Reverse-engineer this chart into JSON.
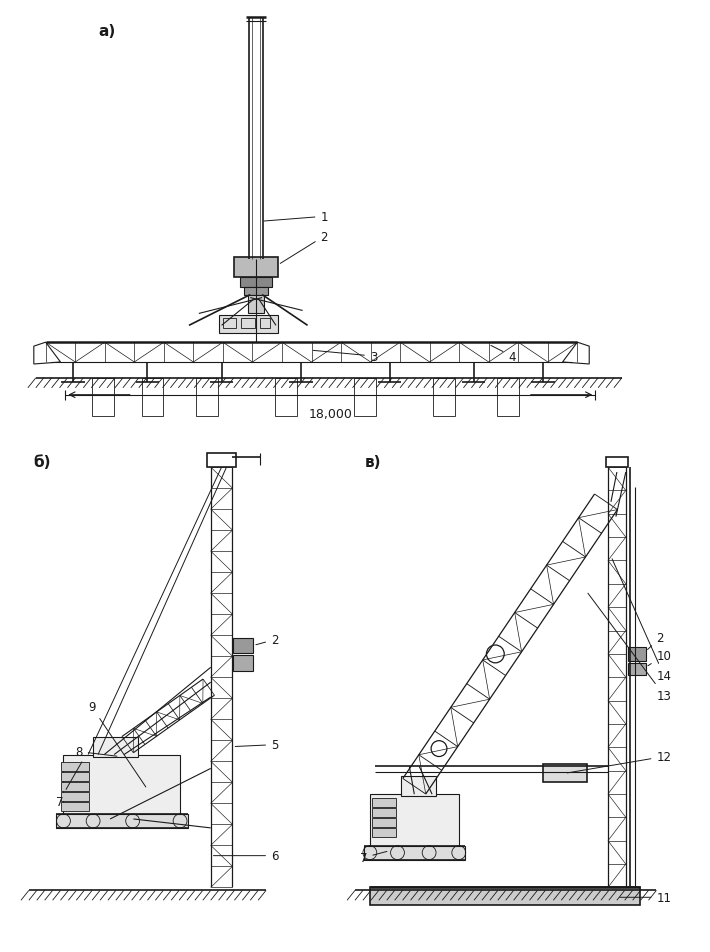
{
  "bg_color": "#ffffff",
  "line_color": "#1a1a1a",
  "label_a": "а)",
  "label_b": "б)",
  "label_v": "в)",
  "dim_label": "18,000"
}
